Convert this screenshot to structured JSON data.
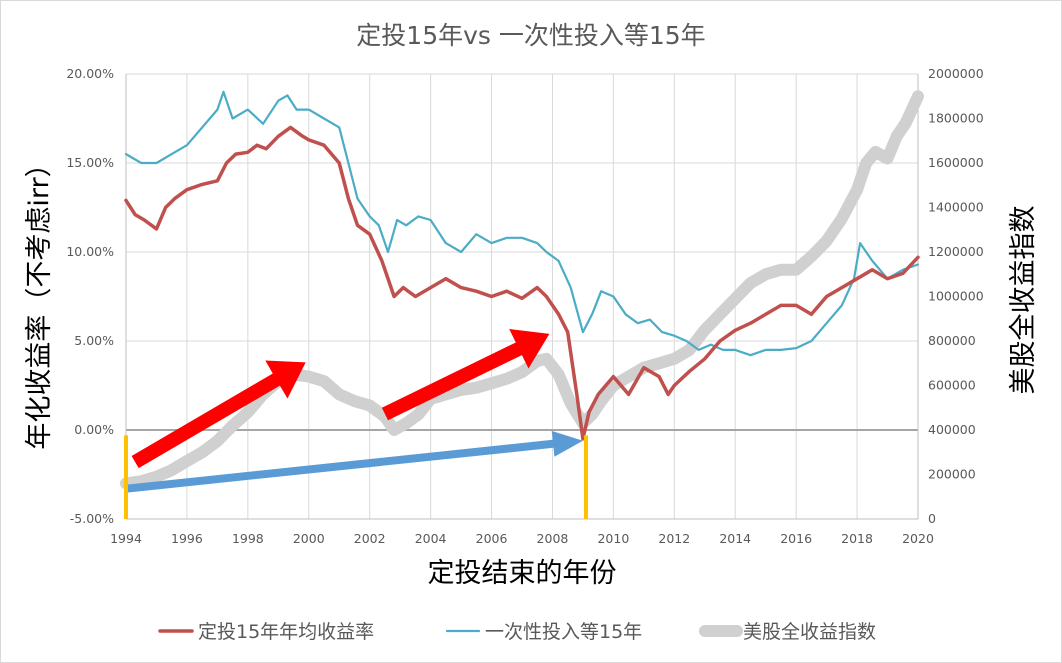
{
  "chart_data": {
    "type": "line",
    "title": "定投15年vs 一次性投入等15年",
    "xlabel": "定投结束的年份",
    "ylabel_left": "年化收益率（不考虑irr）",
    "ylabel_right": "美股全收益指数",
    "xlim": [
      1994,
      2020
    ],
    "ylim_left": [
      -0.05,
      0.2
    ],
    "ylim_right": [
      0,
      2000000
    ],
    "x_ticks": [
      "1994",
      "1996",
      "1998",
      "2000",
      "2002",
      "2004",
      "2006",
      "2008",
      "2010",
      "2012",
      "2014",
      "2016",
      "2018",
      "2020"
    ],
    "y_left_ticks": [
      "-5.00%",
      "0.00%",
      "5.00%",
      "10.00%",
      "15.00%",
      "20.00%"
    ],
    "y_right_ticks": [
      "0",
      "200000",
      "400000",
      "600000",
      "800000",
      "1000000",
      "1200000",
      "1400000",
      "1600000",
      "1800000",
      "2000000"
    ],
    "grid": true,
    "legend_position": "bottom",
    "series": [
      {
        "name": "定投15年年均收益率",
        "axis": "left",
        "color": "#c0504d",
        "x": [
          1994.0,
          1994.3,
          1994.6,
          1995.0,
          1995.3,
          1995.6,
          1996.0,
          1996.5,
          1997.0,
          1997.3,
          1997.6,
          1998.0,
          1998.3,
          1998.6,
          1999.0,
          1999.4,
          1999.8,
          2000.0,
          2000.5,
          2001.0,
          2001.3,
          2001.6,
          2002.0,
          2002.4,
          2002.8,
          2003.1,
          2003.5,
          2004.0,
          2004.5,
          2005.0,
          2005.5,
          2006.0,
          2006.5,
          2007.0,
          2007.5,
          2007.8,
          2008.2,
          2008.5,
          2008.8,
          2009.0,
          2009.2,
          2009.5,
          2010.0,
          2010.5,
          2011.0,
          2011.5,
          2011.8,
          2012.0,
          2012.5,
          2013.0,
          2013.5,
          2014.0,
          2014.5,
          2015.0,
          2015.5,
          2016.0,
          2016.5,
          2017.0,
          2017.5,
          2018.0,
          2018.5,
          2019.0,
          2019.5,
          2020.0
        ],
        "values": [
          0.129,
          0.121,
          0.118,
          0.113,
          0.125,
          0.13,
          0.135,
          0.138,
          0.14,
          0.15,
          0.155,
          0.156,
          0.16,
          0.158,
          0.165,
          0.17,
          0.165,
          0.163,
          0.16,
          0.15,
          0.13,
          0.115,
          0.11,
          0.095,
          0.075,
          0.08,
          0.075,
          0.08,
          0.085,
          0.08,
          0.078,
          0.075,
          0.078,
          0.074,
          0.08,
          0.075,
          0.065,
          0.055,
          0.02,
          -0.005,
          0.01,
          0.02,
          0.03,
          0.02,
          0.035,
          0.03,
          0.02,
          0.025,
          0.033,
          0.04,
          0.05,
          0.056,
          0.06,
          0.065,
          0.07,
          0.07,
          0.065,
          0.075,
          0.08,
          0.085,
          0.09,
          0.085,
          0.088,
          0.097
        ]
      },
      {
        "name": "一次性投入等15年",
        "axis": "left",
        "color": "#4bacc6",
        "x": [
          1994.0,
          1994.5,
          1995.0,
          1995.5,
          1996.0,
          1996.5,
          1997.0,
          1997.2,
          1997.5,
          1998.0,
          1998.5,
          1999.0,
          1999.3,
          1999.6,
          2000.0,
          2000.5,
          2001.0,
          2001.3,
          2001.6,
          2002.0,
          2002.3,
          2002.6,
          2002.9,
          2003.2,
          2003.6,
          2004.0,
          2004.5,
          2005.0,
          2005.5,
          2006.0,
          2006.5,
          2007.0,
          2007.5,
          2007.8,
          2008.2,
          2008.6,
          2009.0,
          2009.3,
          2009.6,
          2010.0,
          2010.4,
          2010.8,
          2011.2,
          2011.6,
          2012.0,
          2012.4,
          2012.8,
          2013.2,
          2013.6,
          2014.0,
          2014.5,
          2015.0,
          2015.5,
          2016.0,
          2016.5,
          2017.0,
          2017.5,
          2017.9,
          2018.1,
          2018.5,
          2019.0,
          2019.5,
          2020.0
        ],
        "values": [
          0.155,
          0.15,
          0.15,
          0.155,
          0.16,
          0.17,
          0.18,
          0.19,
          0.175,
          0.18,
          0.172,
          0.185,
          0.188,
          0.18,
          0.18,
          0.175,
          0.17,
          0.15,
          0.13,
          0.12,
          0.115,
          0.1,
          0.118,
          0.115,
          0.12,
          0.118,
          0.105,
          0.1,
          0.11,
          0.105,
          0.108,
          0.108,
          0.105,
          0.1,
          0.095,
          0.08,
          0.055,
          0.065,
          0.078,
          0.075,
          0.065,
          0.06,
          0.062,
          0.055,
          0.053,
          0.05,
          0.045,
          0.048,
          0.045,
          0.045,
          0.042,
          0.045,
          0.045,
          0.046,
          0.05,
          0.06,
          0.07,
          0.085,
          0.105,
          0.095,
          0.085,
          0.09,
          0.093
        ]
      },
      {
        "name": "美股全收益指数",
        "axis": "right",
        "color": "#d0d0d0",
        "x": [
          1994.0,
          1994.5,
          1995.0,
          1995.5,
          1996.0,
          1996.5,
          1997.0,
          1997.5,
          1998.0,
          1998.5,
          1999.0,
          1999.5,
          2000.0,
          2000.5,
          2001.0,
          2001.5,
          2002.0,
          2002.5,
          2002.8,
          2003.2,
          2003.6,
          2004.0,
          2004.5,
          2005.0,
          2005.5,
          2006.0,
          2006.5,
          2007.0,
          2007.5,
          2007.8,
          2008.2,
          2008.6,
          2009.0,
          2009.3,
          2009.6,
          2010.0,
          2010.5,
          2011.0,
          2011.5,
          2012.0,
          2012.5,
          2013.0,
          2013.5,
          2014.0,
          2014.5,
          2015.0,
          2015.5,
          2016.0,
          2016.5,
          2017.0,
          2017.5,
          2018.0,
          2018.3,
          2018.6,
          2019.0,
          2019.3,
          2019.6,
          2020.0
        ],
        "values": [
          160000,
          170000,
          190000,
          220000,
          260000,
          300000,
          350000,
          420000,
          480000,
          560000,
          620000,
          650000,
          640000,
          620000,
          560000,
          530000,
          510000,
          460000,
          400000,
          430000,
          470000,
          540000,
          560000,
          580000,
          590000,
          610000,
          630000,
          660000,
          710000,
          720000,
          650000,
          520000,
          430000,
          470000,
          530000,
          600000,
          640000,
          680000,
          700000,
          720000,
          760000,
          850000,
          920000,
          990000,
          1060000,
          1100000,
          1120000,
          1120000,
          1180000,
          1250000,
          1350000,
          1480000,
          1600000,
          1650000,
          1620000,
          1720000,
          1780000,
          1900000
        ]
      }
    ],
    "annotations": [
      {
        "type": "arrow",
        "color": "#ff0000"
      },
      {
        "type": "arrow",
        "color": "#ff0000"
      },
      {
        "type": "arrow",
        "color": "#5b9bd5"
      },
      {
        "type": "vertical-marker",
        "x": 1994,
        "color": "#ffc000"
      },
      {
        "type": "vertical-marker",
        "x": 2009.1,
        "color": "#ffc000"
      }
    ]
  }
}
